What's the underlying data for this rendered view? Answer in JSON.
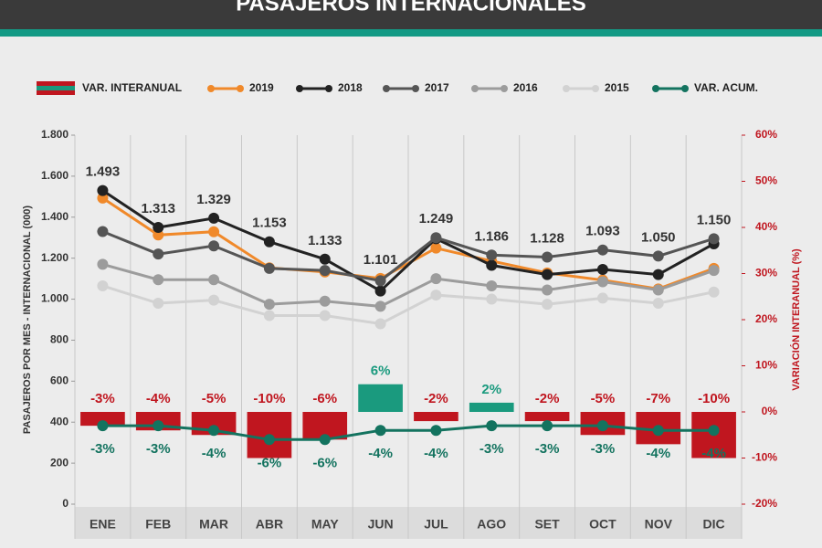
{
  "chart_data": {
    "type": "line",
    "title": "PASAJEROS INTERNACIONALES",
    "y_label": "PASAJEROS POR MES - INTERNACIONAL (000)",
    "y2_label": "VARIACIÓN INTERANUAL (%)",
    "categories": [
      "ENE",
      "FEB",
      "MAR",
      "ABR",
      "MAY",
      "JUN",
      "JUL",
      "AGO",
      "SET",
      "OCT",
      "NOV",
      "DIC"
    ],
    "ylim": [
      0,
      1800
    ],
    "yticks": [
      0,
      200,
      400,
      600,
      800,
      {
        "value": 1000,
        "label": "1.000"
      },
      {
        "value": 1200,
        "label": "1.200"
      },
      {
        "value": 1400,
        "label": "1.400"
      },
      {
        "value": 1600,
        "label": "1.600"
      },
      {
        "value": 1800,
        "label": "1.800"
      }
    ],
    "y2lim": [
      -20,
      60
    ],
    "y2ticks": [
      {
        "value": -20,
        "label": "-20%"
      },
      {
        "value": -10,
        "label": "-10%"
      },
      {
        "value": 0,
        "label": "0%"
      },
      {
        "value": 10,
        "label": "10%"
      },
      {
        "value": 20,
        "label": "20%"
      },
      {
        "value": 30,
        "label": "30%"
      },
      {
        "value": 40,
        "label": "40%"
      },
      {
        "value": 50,
        "label": "50%"
      },
      {
        "value": 60,
        "label": "60%"
      }
    ],
    "series": [
      {
        "name": "VAR. INTERANUAL",
        "type": "bar",
        "axis": "y2",
        "color": "#c0161f",
        "positive_color": "#1a9a7e",
        "values": [
          -3,
          -4,
          -5,
          -10,
          -6,
          6,
          -2,
          2,
          -2,
          -5,
          -7,
          -10
        ],
        "value_labels": [
          "-3%",
          "-4%",
          "-5%",
          "-10%",
          "-6%",
          "6%",
          "-2%",
          "2%",
          "-2%",
          "-5%",
          "-7%",
          "-10%"
        ]
      },
      {
        "name": "2019",
        "type": "line",
        "color": "#f0892a",
        "values": [
          1493,
          1313,
          1329,
          1153,
          1133,
          1101,
          1249,
          1186,
          1128,
          1093,
          1050,
          1150
        ],
        "value_labels": [
          "1.493",
          "1.313",
          "1.329",
          "1.153",
          "1.133",
          "1.101",
          "1.249",
          "1.186",
          "1.128",
          "1.093",
          "1.050",
          "1.150"
        ]
      },
      {
        "name": "2018",
        "type": "line",
        "color": "#222222",
        "values": [
          1530,
          1350,
          1395,
          1280,
          1195,
          1040,
          1295,
          1165,
          1120,
          1145,
          1120,
          1270
        ]
      },
      {
        "name": "2017",
        "type": "line",
        "color": "#555555",
        "values": [
          1330,
          1220,
          1260,
          1150,
          1140,
          1090,
          1300,
          1215,
          1205,
          1240,
          1210,
          1295
        ]
      },
      {
        "name": "2016",
        "type": "line",
        "color": "#9c9c9c",
        "values": [
          1170,
          1095,
          1095,
          975,
          990,
          965,
          1100,
          1065,
          1045,
          1085,
          1045,
          1140
        ]
      },
      {
        "name": "2015",
        "type": "line",
        "color": "#d2d2d2",
        "values": [
          1065,
          980,
          995,
          920,
          920,
          880,
          1020,
          1000,
          975,
          1005,
          980,
          1035
        ]
      },
      {
        "name": "VAR. ACUM.",
        "type": "line",
        "axis": "y2",
        "color": "#13735f",
        "values": [
          -3,
          -3,
          -4,
          -6,
          -6,
          -4,
          -4,
          -3,
          -3,
          -3,
          -4,
          -4
        ],
        "value_labels": [
          "-3%",
          "-3%",
          "-4%",
          "-6%",
          "-6%",
          "-4%",
          "-4%",
          "-3%",
          "-3%",
          "-3%",
          "-4%",
          "-4%"
        ]
      }
    ]
  }
}
